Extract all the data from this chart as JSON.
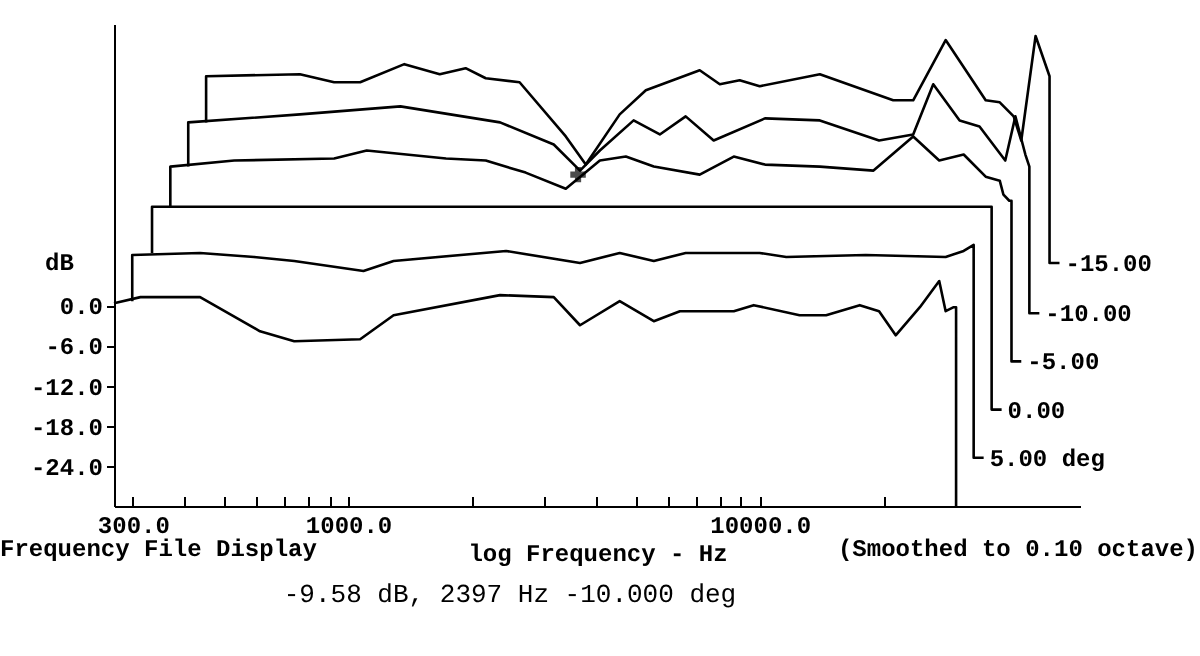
{
  "chart_data": {
    "type": "line",
    "xlabel": "log Frequency - Hz",
    "ylabel": "dB",
    "log": "x",
    "xlim": [
      270,
      60000
    ],
    "ylim": [
      -30,
      42
    ],
    "xticks": [
      {
        "value": 300,
        "label": "300.0"
      },
      {
        "value": 400,
        "label": null
      },
      {
        "value": 500,
        "label": null
      },
      {
        "value": 600,
        "label": null
      },
      {
        "value": 700,
        "label": null
      },
      {
        "value": 800,
        "label": null
      },
      {
        "value": 900,
        "label": null
      },
      {
        "value": 1000,
        "label": "1000.0"
      },
      {
        "value": 2000,
        "label": null
      },
      {
        "value": 3000,
        "label": null
      },
      {
        "value": 4000,
        "label": null
      },
      {
        "value": 5000,
        "label": null
      },
      {
        "value": 6000,
        "label": null
      },
      {
        "value": 7000,
        "label": null
      },
      {
        "value": 8000,
        "label": null
      },
      {
        "value": 9000,
        "label": null
      },
      {
        "value": 10000,
        "label": "10000.0"
      },
      {
        "value": 20000,
        "label": null
      }
    ],
    "yticks": [
      {
        "value": 0,
        "label": "0.0"
      },
      {
        "value": -6,
        "label": "-6.0"
      },
      {
        "value": -12,
        "label": "-12.0"
      },
      {
        "value": -18,
        "label": "-18.0"
      },
      {
        "value": -24,
        "label": "-24.0"
      }
    ],
    "grid": false,
    "line_style": "solid",
    "annotations": [
      "Frequency File Display",
      "(Smoothed to 0.10 octave)",
      "-9.58 dB, 2397 Hz -10.000 deg"
    ],
    "series": [
      {
        "color": "#000000",
        "x": [
          270,
          313,
          437,
          611,
          740,
          1070,
          1290,
          2340,
          3160,
          3660,
          4570,
          5530,
          6400,
          8650,
          9670,
          12500,
          14500,
          17500,
          19500,
          21400,
          24500,
          27300,
          28300,
          29600,
          30000,
          30000
        ],
        "values": [
          0.3,
          1.2,
          1.2,
          -3.9,
          -5.4,
          -5.1,
          -1.5,
          1.5,
          1.2,
          -3,
          0.6,
          -2.4,
          -0.9,
          -0.9,
          0,
          -1.5,
          -1.5,
          0,
          -0.9,
          -4.5,
          -0.3,
          3.6,
          -0.9,
          -0.3,
          -0.3,
          -30
        ]
      },
      {
        "name": "5.00 deg",
        "color": "#000000",
        "x": [
          299,
          299,
          437,
          591,
          740,
          1090,
          1290,
          2420,
          3660,
          4570,
          5530,
          6610,
          10000,
          11600,
          18100,
          28300,
          31300,
          33100,
          33100,
          35000
        ],
        "values": [
          0.6,
          7.5,
          7.8,
          7.2,
          6.6,
          5.1,
          6.6,
          8.1,
          6.3,
          7.8,
          6.6,
          7.8,
          7.8,
          7.2,
          7.5,
          7.2,
          8.1,
          9,
          -22.8,
          -22.8
        ]
      },
      {
        "name": "0.00",
        "color": "#000000",
        "x": [
          334,
          334,
          36600,
          36600,
          38700
        ],
        "values": [
          7.8,
          14.7,
          14.7,
          -15.6,
          -15.6
        ]
      },
      {
        "name": "-5.00",
        "color": "#000000",
        "x": [
          370,
          370,
          529,
          925,
          1110,
          1730,
          2160,
          2700,
          3380,
          4090,
          4730,
          5530,
          7150,
          8650,
          10300,
          14000,
          18900,
          23600,
          27300,
          31300,
          35400,
          38300,
          39100,
          40400,
          40900,
          40900,
          43200
        ],
        "values": [
          14.7,
          20.7,
          21.6,
          21.9,
          23.1,
          21.9,
          21.6,
          19.8,
          17.4,
          21.6,
          22.2,
          20.7,
          19.5,
          22.2,
          21,
          20.7,
          20.1,
          25.2,
          21.6,
          22.5,
          19.2,
          18.6,
          16.5,
          15.6,
          15.6,
          -8.4,
          -8.4
        ]
      },
      {
        "name": "-10.00",
        "color": "#000000",
        "x": [
          409,
          409,
          764,
          1340,
          2340,
          3160,
          3660,
          4090,
          4940,
          5720,
          6610,
          7730,
          10300,
          14000,
          19500,
          23600,
          26400,
          30600,
          34200,
          39500,
          41800,
          44200,
          45200,
          45200,
          47800
        ],
        "values": [
          20.7,
          27.3,
          28.5,
          29.7,
          27.3,
          24,
          20.1,
          23.1,
          27.6,
          25.5,
          28.2,
          24.6,
          27.9,
          27.6,
          24.6,
          25.5,
          33,
          27.6,
          26.7,
          21.6,
          28.2,
          22.5,
          20.7,
          -1.2,
          -1.2
        ]
      },
      {
        "name": "-15.00",
        "color": "#000000",
        "x": [
          452,
          452,
          764,
          925,
          1070,
          1370,
          1670,
          1930,
          2160,
          2610,
          3380,
          3780,
          4570,
          5290,
          7150,
          8000,
          8940,
          10000,
          14000,
          21100,
          23600,
          28300,
          35400,
          38300,
          41400,
          43200,
          46800,
          50600,
          50600,
          53500
        ],
        "values": [
          27.3,
          34.2,
          34.5,
          33.3,
          33.3,
          36,
          34.5,
          35.4,
          33.9,
          33.3,
          25.2,
          21,
          28.5,
          32.1,
          35.1,
          33,
          33.6,
          32.7,
          34.5,
          30.6,
          30.6,
          39.6,
          30.6,
          30.3,
          28.2,
          24.6,
          40.2,
          34.2,
          6.3,
          6.3
        ]
      },
      {
        "type": "scatter",
        "marker": "cross",
        "color": "#000000",
        "x": [
          3620
        ],
        "values": [
          19.5
        ]
      }
    ]
  }
}
